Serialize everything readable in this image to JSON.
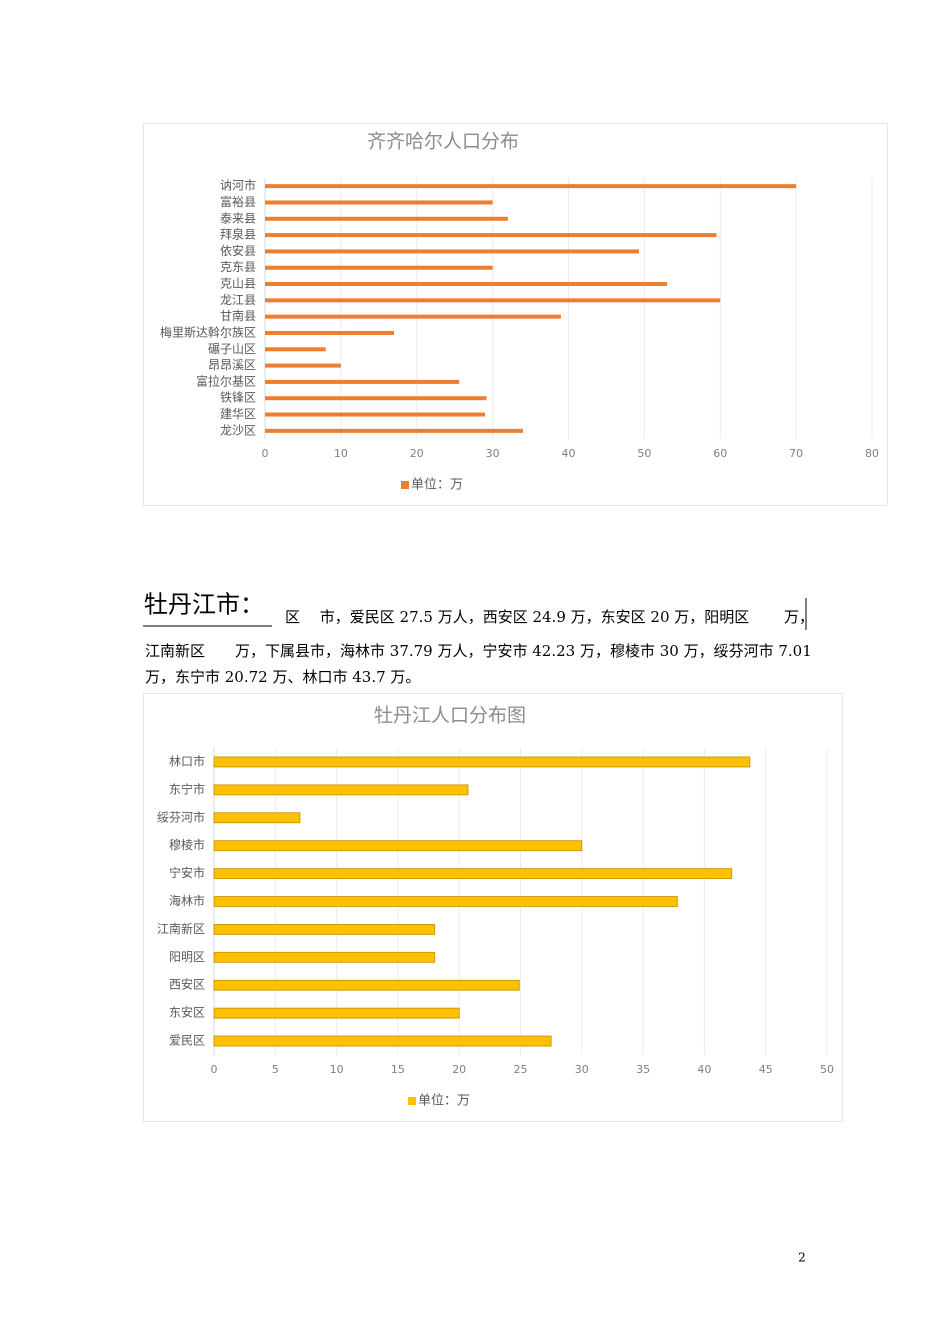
{
  "chart_data": [
    {
      "type": "barh",
      "title": "齐齐哈尔人口分布",
      "categories": [
        "讷河市",
        "富裕县",
        "泰来县",
        "拜泉县",
        "依安县",
        "克东县",
        "克山县",
        "龙江县",
        "甘南县",
        "梅里斯达斡尔族区",
        "碾子山区",
        "昂昂溪区",
        "富拉尔基区",
        "铁锋区",
        "建华区",
        "龙沙区"
      ],
      "series": [
        {
          "name": "单位：万",
          "color": "#ed7d31",
          "values": [
            70,
            30,
            32,
            59.5,
            49.3,
            30,
            53,
            60,
            39,
            17,
            8,
            10,
            25.6,
            29.2,
            29,
            34
          ]
        }
      ],
      "xlim": [
        0,
        80
      ],
      "xticks": [
        0,
        10,
        20,
        30,
        40,
        50,
        60,
        70,
        80
      ],
      "grid": true,
      "legend": "bottom"
    },
    {
      "type": "barh",
      "title": "牡丹江人口分布图",
      "categories": [
        "林口市",
        "东宁市",
        "绥芬河市",
        "穆棱市",
        "宁安市",
        "海林市",
        "江南新区",
        "阳明区",
        "西安区",
        "东安区",
        "爱民区"
      ],
      "series": [
        {
          "name": "单位：万",
          "color": "#ffc000",
          "values": [
            43.7,
            20.72,
            7.01,
            30,
            42.23,
            37.79,
            18,
            18,
            24.9,
            20,
            27.5
          ]
        }
      ],
      "xlim": [
        0,
        50
      ],
      "xticks": [
        0,
        5,
        10,
        15,
        20,
        25,
        30,
        35,
        40,
        45,
        50
      ],
      "grid": true,
      "legend": "bottom"
    }
  ],
  "section": {
    "heading": "牡丹江市：",
    "lines": [
      "区　 市，爱民区 27.5 万人，西安区 24.9 万，东安区 20 万，阳明区　　 万，",
      "江南新区　　万，下属县市，海林市 37.79 万人，宁安市 42.23 万，穆棱市 30 万，绥芬河市 7.01",
      "万，东宁市 20.72 万、林口市 43.7 万。"
    ]
  },
  "page_number": "2"
}
